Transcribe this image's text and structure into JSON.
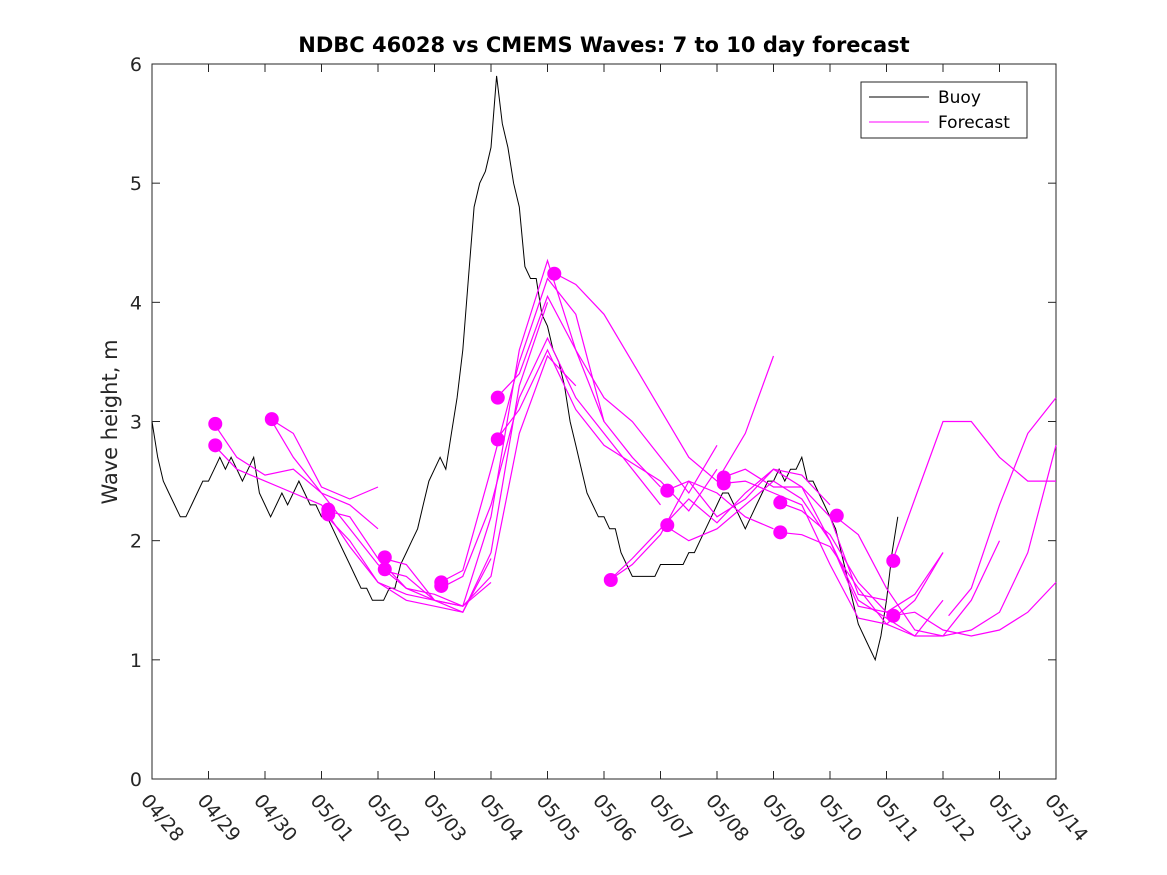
{
  "chart_data": {
    "type": "line",
    "title": "NDBC 46028 vs CMEMS Waves: 7 to 10 day forecast",
    "xlabel": "",
    "ylabel": "Wave height, m",
    "x_tick_labels": [
      "04/28",
      "04/29",
      "04/30",
      "05/01",
      "05/02",
      "05/03",
      "05/04",
      "05/05",
      "05/06",
      "05/07",
      "05/08",
      "05/09",
      "05/10",
      "05/11",
      "05/12",
      "05/13",
      "05/14"
    ],
    "xlim": [
      0,
      16
    ],
    "x_units": "days since 04/28",
    "ylim": [
      0,
      6
    ],
    "y_ticks": [
      0,
      1,
      2,
      3,
      4,
      5,
      6
    ],
    "grid": false,
    "legend_position": "top-right",
    "legend": [
      {
        "name": "Buoy",
        "color": "#000000"
      },
      {
        "name": "Forecast",
        "color": "#ff00ff"
      }
    ],
    "series": [
      {
        "name": "Buoy",
        "color": "#000000",
        "x": [
          0,
          0.1,
          0.2,
          0.3,
          0.4,
          0.5,
          0.6,
          0.7,
          0.8,
          0.9,
          1.0,
          1.1,
          1.2,
          1.3,
          1.4,
          1.5,
          1.6,
          1.7,
          1.8,
          1.9,
          2.0,
          2.1,
          2.2,
          2.3,
          2.4,
          2.5,
          2.6,
          2.7,
          2.8,
          2.9,
          3.0,
          3.1,
          3.2,
          3.3,
          3.4,
          3.5,
          3.6,
          3.7,
          3.8,
          3.9,
          4.0,
          4.1,
          4.2,
          4.3,
          4.4,
          4.5,
          4.6,
          4.7,
          4.8,
          4.9,
          5.0,
          5.1,
          5.2,
          5.3,
          5.4,
          5.5,
          5.6,
          5.7,
          5.8,
          5.9,
          6.0,
          6.1,
          6.2,
          6.3,
          6.4,
          6.5,
          6.6,
          6.7,
          6.8,
          6.9,
          7.0,
          7.1,
          7.2,
          7.3,
          7.4,
          7.5,
          7.6,
          7.7,
          7.8,
          7.9,
          8.0,
          8.1,
          8.2,
          8.3,
          8.4,
          8.5,
          8.6,
          8.7,
          8.8,
          8.9,
          9.0,
          9.1,
          9.2,
          9.3,
          9.4,
          9.5,
          9.6,
          9.7,
          9.8,
          9.9,
          10.0,
          10.1,
          10.2,
          10.3,
          10.4,
          10.5,
          10.6,
          10.7,
          10.8,
          10.9,
          11.0,
          11.1,
          11.2,
          11.3,
          11.4,
          11.5,
          11.6,
          11.7,
          11.8,
          11.9,
          12.0,
          12.1,
          12.2,
          12.3,
          12.4,
          12.5,
          12.6,
          12.7,
          12.8,
          12.9,
          13.0,
          13.1,
          13.2
        ],
        "y": [
          3.0,
          2.7,
          2.5,
          2.4,
          2.3,
          2.2,
          2.2,
          2.3,
          2.4,
          2.5,
          2.5,
          2.6,
          2.7,
          2.6,
          2.7,
          2.6,
          2.5,
          2.6,
          2.7,
          2.4,
          2.3,
          2.2,
          2.3,
          2.4,
          2.3,
          2.4,
          2.5,
          2.4,
          2.3,
          2.3,
          2.2,
          2.2,
          2.1,
          2.0,
          1.9,
          1.8,
          1.7,
          1.6,
          1.6,
          1.5,
          1.5,
          1.5,
          1.6,
          1.6,
          1.8,
          1.9,
          2.0,
          2.1,
          2.3,
          2.5,
          2.6,
          2.7,
          2.6,
          2.9,
          3.2,
          3.6,
          4.2,
          4.8,
          5.0,
          5.1,
          5.3,
          5.9,
          5.5,
          5.3,
          5.0,
          4.8,
          4.3,
          4.2,
          4.2,
          3.9,
          3.8,
          3.6,
          3.5,
          3.3,
          3.0,
          2.8,
          2.6,
          2.4,
          2.3,
          2.2,
          2.2,
          2.1,
          2.1,
          1.9,
          1.8,
          1.7,
          1.7,
          1.7,
          1.7,
          1.7,
          1.8,
          1.8,
          1.8,
          1.8,
          1.8,
          1.9,
          1.9,
          2.0,
          2.1,
          2.2,
          2.3,
          2.4,
          2.4,
          2.3,
          2.2,
          2.1,
          2.2,
          2.3,
          2.4,
          2.5,
          2.5,
          2.6,
          2.5,
          2.6,
          2.6,
          2.7,
          2.5,
          2.5,
          2.4,
          2.3,
          2.2,
          2.1,
          1.9,
          1.7,
          1.5,
          1.3,
          1.2,
          1.1,
          1.0,
          1.2,
          1.5,
          1.9,
          2.2
        ]
      },
      {
        "name": "Forecast",
        "color": "#ff00ff",
        "tracks": [
          {
            "x": [
              1.1,
              1.5,
              2.0,
              2.5,
              3.0,
              3.5,
              4.0
            ],
            "y": [
              2.98,
              2.7,
              2.55,
              2.6,
              2.4,
              2.3,
              2.1
            ]
          },
          {
            "x": [
              1.1,
              1.5,
              2.0,
              2.5,
              3.0,
              3.5,
              4.0,
              4.5,
              5.0
            ],
            "y": [
              2.8,
              2.6,
              2.5,
              2.4,
              2.3,
              1.95,
              1.65,
              1.55,
              1.5
            ]
          },
          {
            "x": [
              2.1,
              2.5,
              3.0,
              3.5,
              4.0
            ],
            "y": [
              3.02,
              2.9,
              2.45,
              2.35,
              2.45
            ]
          },
          {
            "x": [
              2.1,
              2.5,
              3.0,
              3.5,
              4.0,
              4.5,
              5.0,
              5.5,
              6.0
            ],
            "y": [
              3.02,
              2.7,
              2.4,
              2.1,
              1.8,
              1.6,
              1.5,
              1.4,
              1.85
            ]
          },
          {
            "x": [
              3.1,
              3.5,
              4.0,
              4.5,
              5.0,
              5.5,
              6.0
            ],
            "y": [
              2.25,
              2.2,
              1.85,
              1.6,
              1.55,
              1.45,
              1.65
            ]
          },
          {
            "x": [
              3.1,
              3.5,
              4.0,
              4.5,
              5.0,
              5.5,
              6.0,
              6.5,
              7.0
            ],
            "y": [
              2.2,
              2.0,
              1.65,
              1.5,
              1.45,
              1.4,
              1.9,
              3.3,
              4.0
            ]
          },
          {
            "x": [
              4.1,
              4.5,
              5.0,
              5.5,
              6.0,
              6.5,
              7.0,
              7.5
            ],
            "y": [
              1.85,
              1.8,
              1.5,
              1.45,
              1.7,
              2.9,
              3.55,
              3.3
            ]
          },
          {
            "x": [
              4.1,
              4.5,
              5.0,
              5.5,
              6.0,
              6.5,
              7.0,
              7.5,
              8.0
            ],
            "y": [
              1.75,
              1.7,
              1.5,
              1.45,
              2.2,
              3.6,
              4.35,
              3.6,
              3.0
            ]
          },
          {
            "x": [
              5.1,
              5.5,
              6.0,
              6.5,
              7.0,
              7.5,
              8.0,
              8.5,
              9.0
            ],
            "y": [
              1.65,
              1.75,
              2.6,
              3.5,
              4.2,
              3.9,
              3.0,
              2.7,
              2.45
            ]
          },
          {
            "x": [
              5.1,
              5.5,
              6.0,
              6.5,
              7.0,
              7.5,
              8.0,
              8.5,
              9.0
            ],
            "y": [
              1.6,
              1.7,
              2.3,
              3.2,
              3.7,
              3.2,
              2.9,
              2.6,
              2.3
            ]
          },
          {
            "x": [
              6.1,
              6.5,
              7.0,
              7.5,
              8.0,
              8.5,
              9.0,
              9.5,
              10.0
            ],
            "y": [
              3.2,
              3.4,
              4.05,
              3.6,
              3.2,
              3.0,
              2.7,
              2.4,
              2.8
            ]
          },
          {
            "x": [
              6.1,
              6.5,
              7.0,
              7.5,
              8.0,
              8.5,
              9.0,
              9.5,
              10.0
            ],
            "y": [
              2.85,
              3.1,
              3.6,
              3.1,
              2.8,
              2.65,
              2.5,
              2.25,
              2.6
            ]
          },
          {
            "x": [
              7.1,
              7.5,
              8.0,
              8.5,
              9.0,
              9.5,
              10.0,
              10.5,
              11.0
            ],
            "y": [
              4.25,
              4.15,
              3.9,
              3.5,
              3.1,
              2.7,
              2.5,
              2.9,
              3.55
            ]
          },
          {
            "x": [
              8.1,
              8.5,
              9.0,
              9.5,
              10.0,
              10.5,
              11.0
            ],
            "y": [
              1.67,
              1.8,
              2.05,
              2.5,
              2.4,
              2.2,
              2.1
            ]
          },
          {
            "x": [
              8.1,
              8.5,
              9.0,
              9.5,
              10.0,
              10.5,
              11.0,
              11.5,
              12.0
            ],
            "y": [
              1.67,
              1.85,
              2.1,
              2.35,
              2.15,
              2.4,
              2.6,
              2.55,
              2.3
            ]
          },
          {
            "x": [
              9.1,
              9.5,
              10.0,
              10.5,
              11.0,
              11.5,
              12.0,
              12.5,
              13.0
            ],
            "y": [
              2.42,
              2.5,
              2.2,
              2.35,
              2.6,
              2.45,
              2.2,
              1.55,
              1.5
            ]
          },
          {
            "x": [
              9.1,
              9.5,
              10.0,
              10.5,
              11.0,
              11.5,
              12.0,
              12.5,
              13.0
            ],
            "y": [
              2.12,
              2.0,
              2.1,
              2.3,
              2.5,
              2.35,
              2.0,
              1.45,
              1.4
            ]
          },
          {
            "x": [
              10.1,
              10.5,
              11.0,
              11.5,
              12.0,
              12.5,
              13.0,
              13.5,
              14.0
            ],
            "y": [
              2.53,
              2.6,
              2.45,
              2.45,
              2.0,
              1.5,
              1.35,
              1.2,
              1.5
            ]
          },
          {
            "x": [
              10.1,
              10.5,
              11.0,
              11.5,
              12.0,
              12.5,
              13.0,
              13.5,
              14.0
            ],
            "y": [
              2.48,
              2.5,
              2.4,
              2.3,
              1.8,
              1.35,
              1.3,
              1.5,
              1.9
            ]
          },
          {
            "x": [
              11.1,
              11.5,
              12.0,
              12.5,
              13.0,
              13.5,
              14.0
            ],
            "y": [
              2.32,
              2.25,
              2.05,
              1.65,
              1.4,
              1.55,
              1.9
            ]
          },
          {
            "x": [
              11.1,
              11.5,
              12.0,
              12.5,
              13.0,
              13.5,
              14.0,
              14.5,
              15.0
            ],
            "y": [
              2.07,
              2.05,
              1.95,
              1.6,
              1.3,
              1.2,
              1.2,
              1.5,
              2.0
            ]
          },
          {
            "x": [
              12.1,
              12.5,
              13.0,
              13.5,
              14.0,
              14.5,
              15.0,
              15.5,
              16.0
            ],
            "y": [
              2.2,
              2.05,
              1.6,
              1.25,
              1.2,
              1.25,
              1.4,
              1.9,
              2.8
            ]
          },
          {
            "x": [
              13.1,
              13.5,
              14.0,
              14.5,
              15.0,
              15.5,
              16.0
            ],
            "y": [
              1.82,
              2.35,
              3.0,
              3.0,
              2.7,
              2.5,
              2.5
            ]
          },
          {
            "x": [
              13.1,
              13.5,
              14.0,
              14.5,
              15.0,
              15.5,
              16.0
            ],
            "y": [
              1.37,
              1.4,
              1.25,
              1.2,
              1.25,
              1.4,
              1.65
            ]
          },
          {
            "x": [
              14.1,
              14.5,
              15.0,
              15.5,
              16.0
            ],
            "y": [
              1.37,
              1.6,
              2.3,
              2.9,
              3.2
            ]
          }
        ],
        "markers": {
          "x": [
            1.12,
            1.12,
            2.12,
            3.12,
            3.12,
            4.12,
            4.12,
            5.12,
            5.12,
            6.12,
            6.12,
            7.12,
            8.12,
            9.12,
            9.12,
            10.12,
            10.12,
            11.12,
            11.12,
            12.12,
            13.12,
            13.12
          ],
          "y": [
            2.98,
            2.8,
            3.02,
            2.26,
            2.22,
            1.86,
            1.76,
            1.65,
            1.62,
            3.2,
            2.85,
            4.24,
            1.67,
            2.42,
            2.13,
            2.53,
            2.48,
            2.32,
            2.07,
            2.21,
            1.83,
            1.37
          ]
        }
      }
    ]
  }
}
